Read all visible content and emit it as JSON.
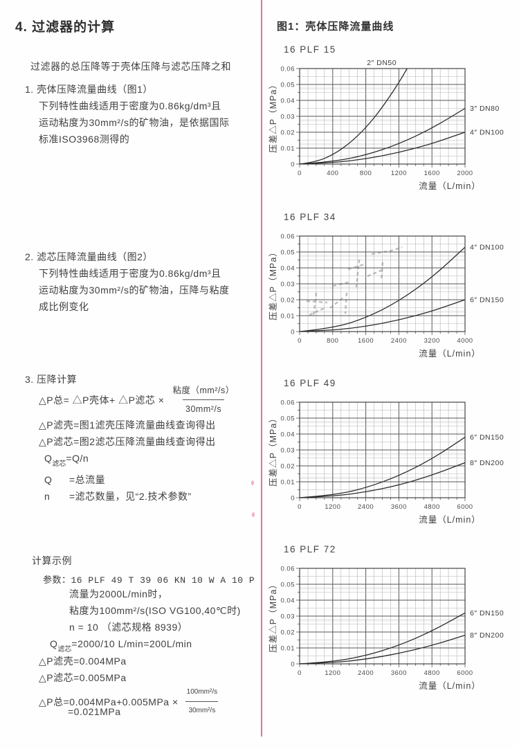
{
  "page": {
    "heading": "4. 过滤器的计算",
    "intro": "过滤器的总压降等于壳体压降与滤芯压降之和",
    "figure_title": "图1：壳体压降流量曲线"
  },
  "sections": {
    "item1": {
      "title": "1. 壳体压降流量曲线（图1）",
      "lines": [
        "下列特性曲线适用于密度为0.86kg/dm³且",
        "运动粘度为30mm²/s的矿物油，是依据国际",
        "标准ISO3968测得的"
      ]
    },
    "item2": {
      "title": "2. 滤芯压降流量曲线（图2）",
      "lines": [
        "下列特性曲线适用于密度为0.86kg/dm³且",
        "运动粘度为30mm²/s的矿物油，压降与粘度",
        "成比例变化"
      ]
    },
    "item3": {
      "title": "3. 压降计算",
      "formula": {
        "lhs": "△P总= △P壳体+ △P滤芯 ×",
        "frac_num": "粘度（mm²/s）",
        "frac_den": "30mm²/s"
      },
      "lines": [
        "△P滤壳=图1滤壳压降流量曲线查询得出",
        "△P滤芯=图2滤芯压降流量曲线查询得出"
      ],
      "q_line": {
        "base": "Q",
        "sub": "滤芯",
        "rest": "=Q/n"
      },
      "defs": [
        {
          "term": "Q",
          "desc": "=总流量"
        },
        {
          "term": "n",
          "desc": "=滤芯数量，见“2.技术参数”"
        }
      ]
    },
    "example": {
      "title": "计算示例",
      "param_line": "参数：16 PLF 49 T 39 06 KN 10 W A 10 P",
      "lines": [
        "流量为2000L/min时，",
        "粘度为100mm²/s(ISO VG100,40℃时)",
        "n = 10 （滤芯规格 8939）"
      ],
      "q_line": {
        "base": "Q",
        "sub": "滤芯",
        "rest": "=2000/10 L/min=200L/min"
      },
      "dp_lines": [
        "△P滤壳=0.004MPa",
        "△P滤芯=0.005MPa"
      ],
      "total": {
        "lhs": "△P总=0.004MPa+0.005MPa ×",
        "frac_num": "100mm²/s",
        "frac_den": "30mm²/s",
        "result": "=0.021MPa"
      }
    }
  },
  "chart_data": [
    {
      "type": "line",
      "model": "16 PLF 15",
      "ylabel": "压差△P（MPa）",
      "xlabel": "流量（L/min）",
      "xlim": [
        0,
        2000
      ],
      "ylim": [
        0,
        0.06
      ],
      "x_ticks": [
        0,
        400,
        800,
        1200,
        1600,
        2000
      ],
      "y_ticks": [
        0,
        0.01,
        0.02,
        0.03,
        0.04,
        0.05,
        0.06
      ],
      "grid": true,
      "watermark": false,
      "series": [
        {
          "name": "2″ DN50",
          "x": [
            0,
            200,
            400,
            600,
            800,
            1000,
            1200,
            1300
          ],
          "y": [
            0,
            0.0014,
            0.0057,
            0.0128,
            0.0227,
            0.0355,
            0.0511,
            0.06
          ]
        },
        {
          "name": "3″ DN80",
          "x": [
            0,
            400,
            800,
            1200,
            1600,
            2000
          ],
          "y": [
            0,
            0.0014,
            0.0056,
            0.0126,
            0.0224,
            0.035
          ]
        },
        {
          "name": "4″ DN100",
          "x": [
            0,
            400,
            800,
            1200,
            1600,
            2000
          ],
          "y": [
            0,
            0.0008,
            0.0032,
            0.0072,
            0.0128,
            0.02
          ]
        }
      ]
    },
    {
      "type": "line",
      "model": "16 PLF 34",
      "ylabel": "压差△P（MPa）",
      "xlabel": "流量（L/min）",
      "xlim": [
        0,
        4000
      ],
      "ylim": [
        0,
        0.06
      ],
      "x_ticks": [
        0,
        800,
        1600,
        2400,
        3200,
        4000
      ],
      "y_ticks": [
        0,
        0.01,
        0.02,
        0.03,
        0.04,
        0.05,
        0.06
      ],
      "grid": true,
      "watermark": true,
      "series": [
        {
          "name": "4″ DN100",
          "x": [
            0,
            800,
            1600,
            2400,
            3200,
            4000
          ],
          "y": [
            0,
            0.0021,
            0.0085,
            0.0191,
            0.0339,
            0.053
          ]
        },
        {
          "name": "6″ DN150",
          "x": [
            0,
            800,
            1600,
            2400,
            3200,
            4000
          ],
          "y": [
            0,
            0.0008,
            0.0032,
            0.0072,
            0.0128,
            0.02
          ]
        }
      ]
    },
    {
      "type": "line",
      "model": "16 PLF 49",
      "ylabel": "压差△P（MPa）",
      "xlabel": "流量（L/min）",
      "xlim": [
        0,
        6000
      ],
      "ylim": [
        0,
        0.06
      ],
      "x_ticks": [
        0,
        1200,
        2400,
        3600,
        4800,
        6000
      ],
      "y_ticks": [
        0,
        0.01,
        0.02,
        0.03,
        0.04,
        0.05,
        0.06
      ],
      "grid": true,
      "watermark": false,
      "series": [
        {
          "name": "6″ DN150",
          "x": [
            0,
            1200,
            2400,
            3600,
            4800,
            6000
          ],
          "y": [
            0,
            0.0015,
            0.0061,
            0.0137,
            0.0243,
            0.038
          ]
        },
        {
          "name": "8″ DN200",
          "x": [
            0,
            1200,
            2400,
            3600,
            4800,
            6000
          ],
          "y": [
            0,
            0.0009,
            0.0035,
            0.0079,
            0.0141,
            0.022
          ]
        }
      ]
    },
    {
      "type": "line",
      "model": "16 PLF 72",
      "ylabel": "压差△P（MPa）",
      "xlabel": "流量（L/min）",
      "xlim": [
        0,
        6000
      ],
      "ylim": [
        0,
        0.06
      ],
      "x_ticks": [
        0,
        1200,
        2400,
        3600,
        4800,
        6000
      ],
      "y_ticks": [
        0,
        0.01,
        0.02,
        0.03,
        0.04,
        0.05,
        0.06
      ],
      "grid": true,
      "watermark": false,
      "series": [
        {
          "name": "6″ DN150",
          "x": [
            0,
            1200,
            2400,
            3600,
            4800,
            6000
          ],
          "y": [
            0,
            0.0013,
            0.0051,
            0.0115,
            0.0205,
            0.032
          ]
        },
        {
          "name": "8″ DN200",
          "x": [
            0,
            1200,
            2400,
            3600,
            4800,
            6000
          ],
          "y": [
            0,
            0.0007,
            0.0029,
            0.0065,
            0.0115,
            0.018
          ]
        }
      ]
    }
  ],
  "colors": {
    "fold_line_pink": "#ea5379",
    "ink": "#3c3c3c",
    "grid_minor": "#b5b5b5",
    "grid_major": "#565656",
    "curve": "#2b2b2b"
  }
}
